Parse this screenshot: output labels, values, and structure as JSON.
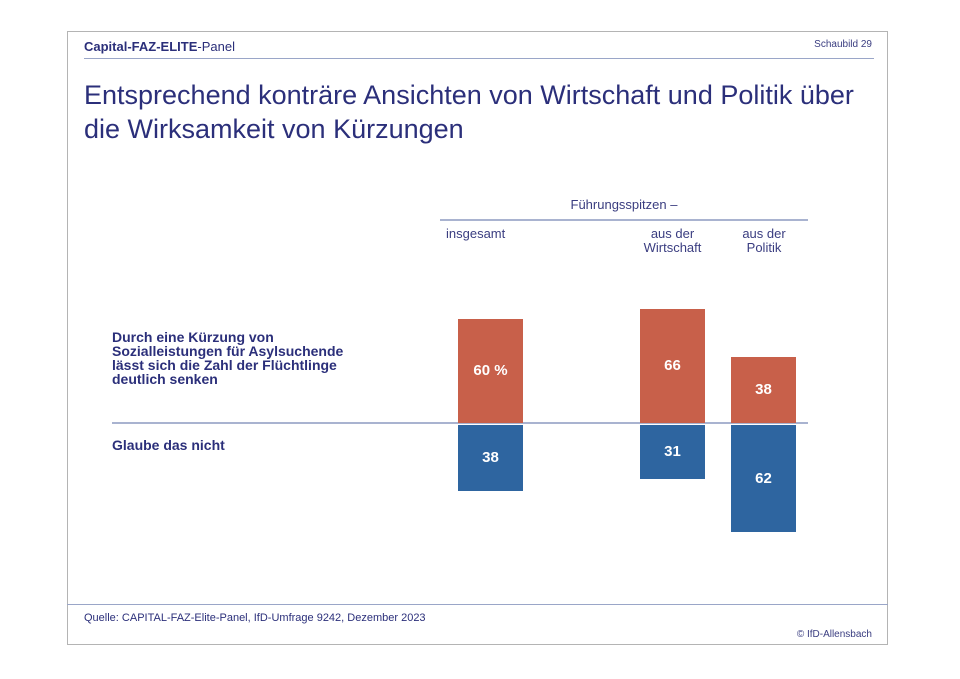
{
  "header": {
    "panel_label_bold": "Capital-FAZ-ELITE",
    "panel_label_rest": "-Panel",
    "figure_number": "Schaubild 29"
  },
  "title": "Entsprechend konträre Ansichten von Wirtschaft und Politik über die Wirksamkeit von Kürzungen",
  "footer": {
    "source": "Quelle: CAPITAL-FAZ-Elite-Panel, IfD-Umfrage 9242, Dezember 2023",
    "copyright": "© IfD-Allensbach"
  },
  "colors": {
    "agree": "#c8604a",
    "disagree": "#2e65a0",
    "text": "#2b2f7a"
  },
  "chart_data": {
    "type": "bar",
    "title": "Entsprechend konträre Ansichten von Wirtschaft und Politik über die Wirksamkeit von Kürzungen",
    "group_label": "Führungsspitzen –",
    "categories": [
      "insgesamt",
      "aus der\nWirtschaft",
      "aus der\nPolitik"
    ],
    "category_lines": [
      [
        "insgesamt"
      ],
      [
        "aus der",
        "Wirtschaft"
      ],
      [
        "aus der",
        "Politik"
      ]
    ],
    "unit": "%",
    "series": [
      {
        "name": "Durch eine Kürzung von Sozialleistungen für Asylsuchende lässt sich die Zahl der Flüchtlinge deutlich senken",
        "name_lines": [
          "Durch eine Kürzung von",
          "Sozialleistungen für Asylsuchende",
          "lässt sich die Zahl der Flüchtlinge",
          "deutlich senken"
        ],
        "direction": "up",
        "values": [
          60,
          66,
          38
        ],
        "labels": [
          "60 %",
          "66",
          "38"
        ]
      },
      {
        "name": "Glaube das nicht",
        "name_lines": [
          "Glaube das nicht"
        ],
        "direction": "down",
        "values": [
          38,
          31,
          62
        ],
        "labels": [
          "38",
          "31",
          "62"
        ]
      }
    ],
    "xlabel": "",
    "ylabel": "",
    "grid": false,
    "legend": "left"
  }
}
